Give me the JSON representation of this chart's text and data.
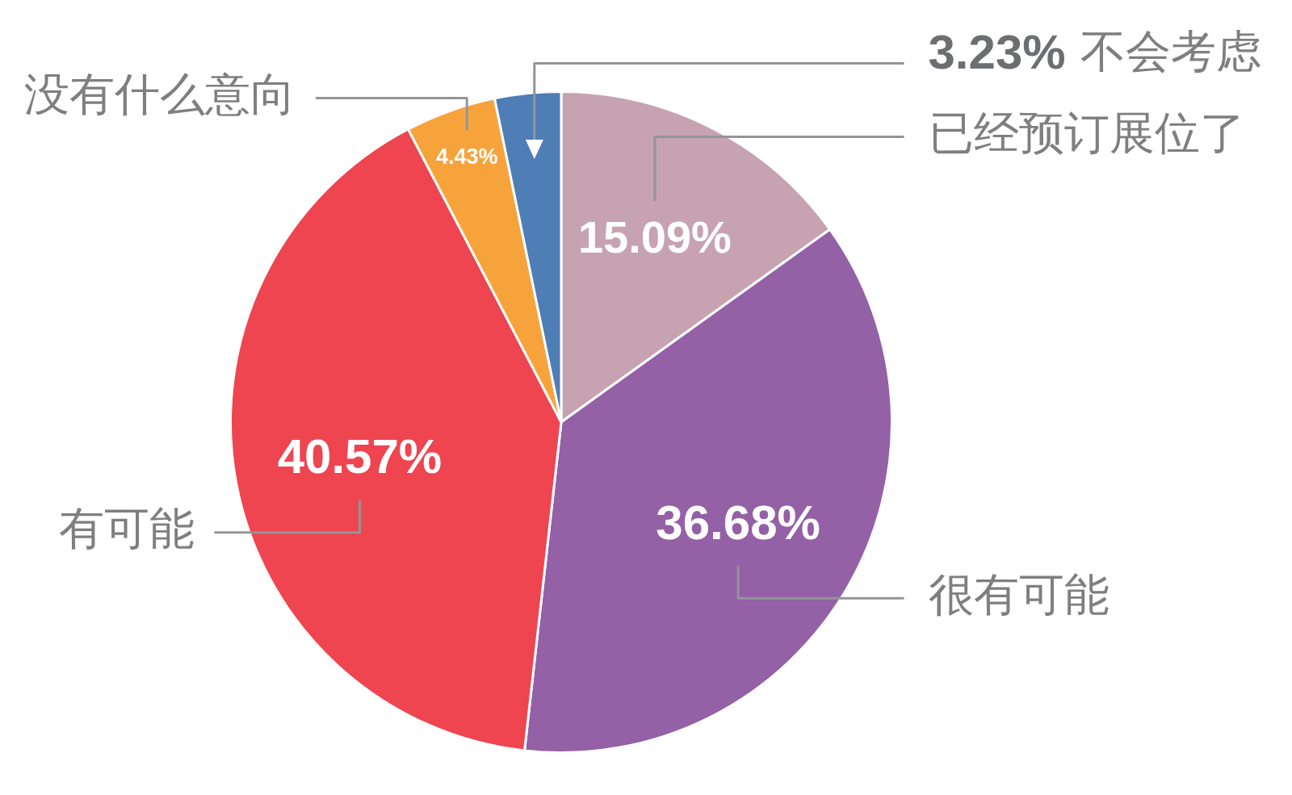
{
  "chart_data": {
    "type": "pie",
    "categories": [
      "已经预订展位了",
      "很有可能",
      "有可能",
      "没有什么意向",
      "不会考虑"
    ],
    "values": [
      15.09,
      36.68,
      40.57,
      4.43,
      3.23
    ],
    "value_labels": [
      "15.09%",
      "36.68%",
      "40.57%",
      "4.43%",
      "3.23%"
    ],
    "colors": [
      "#c7a2b0",
      "#9460a6",
      "#ee4551",
      "#f7a33c",
      "#4f7db5"
    ]
  }
}
